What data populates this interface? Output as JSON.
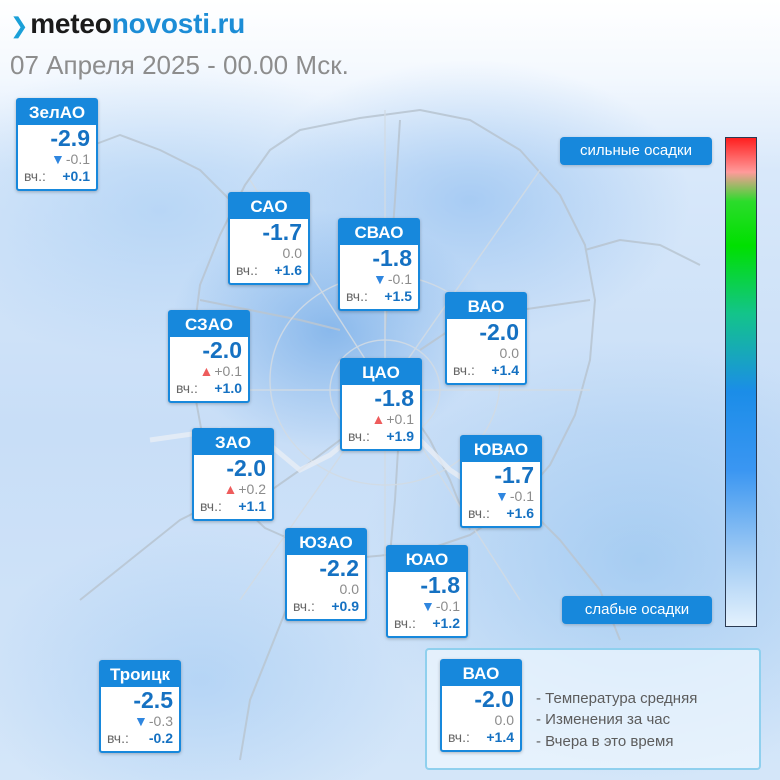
{
  "site": {
    "logo_mark": "❯",
    "logo_part1": "meteo",
    "logo_part2": "novosti.ru"
  },
  "date": "07 Апреля 2025 - 00.00 Мск.",
  "districts": {
    "zelao": {
      "name": "ЗелАО",
      "temp": "-2.9",
      "change": "-0.1",
      "trend": "down",
      "yesterday_label": "вч.:",
      "yesterday": "+0.1"
    },
    "sao": {
      "name": "САО",
      "temp": "-1.7",
      "change": "0.0",
      "trend": "none",
      "yesterday_label": "вч.:",
      "yesterday": "+1.6"
    },
    "svao": {
      "name": "СВАО",
      "temp": "-1.8",
      "change": "-0.1",
      "trend": "down",
      "yesterday_label": "вч.:",
      "yesterday": "+1.5"
    },
    "vao": {
      "name": "ВАО",
      "temp": "-2.0",
      "change": "0.0",
      "trend": "none",
      "yesterday_label": "вч.:",
      "yesterday": "+1.4"
    },
    "szao": {
      "name": "СЗАО",
      "temp": "-2.0",
      "change": "+0.1",
      "trend": "up",
      "yesterday_label": "вч.:",
      "yesterday": "+1.0"
    },
    "cao": {
      "name": "ЦАО",
      "temp": "-1.8",
      "change": "+0.1",
      "trend": "up",
      "yesterday_label": "вч.:",
      "yesterday": "+1.9"
    },
    "zao": {
      "name": "ЗАО",
      "temp": "-2.0",
      "change": "+0.2",
      "trend": "up",
      "yesterday_label": "вч.:",
      "yesterday": "+1.1"
    },
    "yuvao": {
      "name": "ЮВАО",
      "temp": "-1.7",
      "change": "-0.1",
      "trend": "down",
      "yesterday_label": "вч.:",
      "yesterday": "+1.6"
    },
    "yuzao": {
      "name": "ЮЗАО",
      "temp": "-2.2",
      "change": "0.0",
      "trend": "none",
      "yesterday_label": "вч.:",
      "yesterday": "+0.9"
    },
    "yuao": {
      "name": "ЮАО",
      "temp": "-1.8",
      "change": "-0.1",
      "trend": "down",
      "yesterday_label": "вч.:",
      "yesterday": "+1.2"
    },
    "troitsk": {
      "name": "Троицк",
      "temp": "-2.5",
      "change": "-0.3",
      "trend": "down",
      "yesterday_label": "вч.:",
      "yesterday": "-0.2"
    }
  },
  "scale": {
    "top_label": "сильные осадки",
    "bottom_label": "слабые осадки"
  },
  "legend": {
    "card": {
      "name": "ВАО",
      "temp": "-2.0",
      "change": "0.0",
      "trend": "none",
      "yesterday_label": "вч.:",
      "yesterday": "+1.4"
    },
    "line1": "- Температура средняя",
    "line2": "- Изменения за час",
    "line3": "- Вчера в это время"
  },
  "glyphs": {
    "up": "▲",
    "down": "▼"
  },
  "colors": {
    "brand": "#1788dc",
    "temp_text": "#1571c2",
    "trend_up": "#ee5c5c",
    "trend_down": "#2f86df"
  }
}
